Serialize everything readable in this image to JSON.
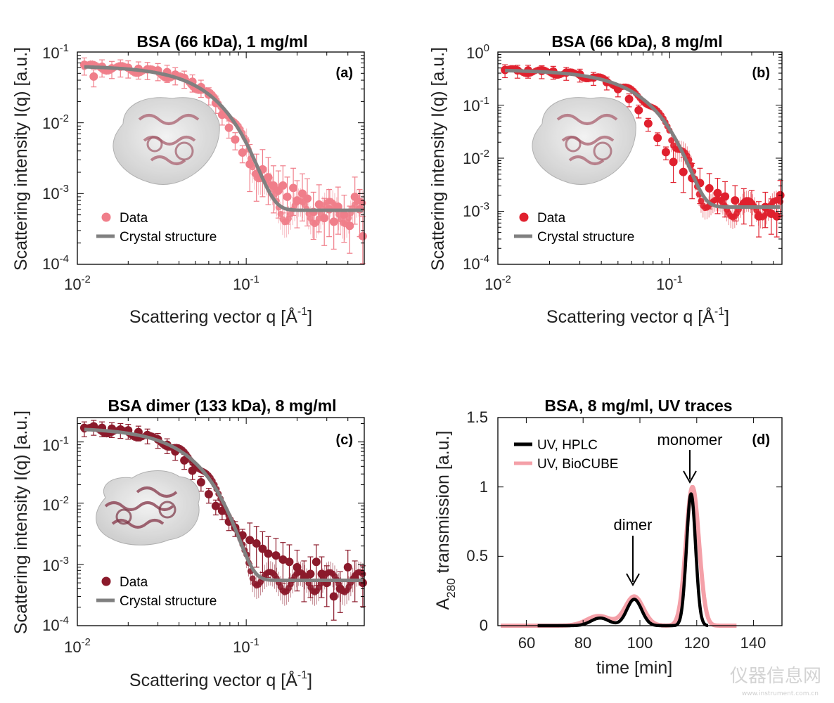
{
  "watermark": {
    "text": "仪器信息网",
    "url_text": "www.instrument.com.cn"
  },
  "chart_data": [
    {
      "id": "a",
      "type": "scatter",
      "scale": "loglog",
      "title": "BSA (66 kDa), 1 mg/ml",
      "panel_label": "(a)",
      "xlabel": "Scattering vector q [Å",
      "xlabel_sup": "-1",
      "xlabel_end": "]",
      "ylabel": "Scattering intensity I(q) [a.u.]",
      "xlim": [
        0.01,
        0.5
      ],
      "ylim": [
        0.0001,
        0.1
      ],
      "xticks": [
        {
          "base": "10",
          "exp": "-2"
        },
        {
          "base": "10",
          "exp": "-1"
        }
      ],
      "yticks": [
        {
          "base": "10",
          "exp": "-4"
        },
        {
          "base": "10",
          "exp": "-3"
        },
        {
          "base": "10",
          "exp": "-2"
        },
        {
          "base": "10",
          "exp": "-1"
        }
      ],
      "legend": {
        "position": "bottom-left",
        "entries": [
          "Data",
          "Crystal structure"
        ]
      },
      "data_color": "#f07e8a",
      "fit_color": "#808080",
      "model": {
        "I0": 0.063,
        "rg": 28,
        "tail": 0.00058
      },
      "data_points": [
        [
          0.011,
          0.066
        ],
        [
          0.0125,
          0.045
        ],
        [
          0.014,
          0.062
        ],
        [
          0.016,
          0.059
        ],
        [
          0.018,
          0.062
        ],
        [
          0.02,
          0.06
        ],
        [
          0.023,
          0.058
        ],
        [
          0.026,
          0.057
        ],
        [
          0.03,
          0.055
        ],
        [
          0.034,
          0.052
        ],
        [
          0.038,
          0.048
        ],
        [
          0.043,
          0.043
        ],
        [
          0.048,
          0.038
        ],
        [
          0.054,
          0.032
        ],
        [
          0.06,
          0.025
        ],
        [
          0.066,
          0.019
        ],
        [
          0.072,
          0.013
        ],
        [
          0.079,
          0.0085
        ],
        [
          0.086,
          0.0058
        ],
        [
          0.095,
          0.0038
        ],
        [
          0.105,
          0.0026
        ],
        [
          0.115,
          0.0019
        ],
        [
          0.125,
          0.0022
        ],
        [
          0.135,
          0.0017
        ],
        [
          0.145,
          0.0013
        ],
        [
          0.155,
          0.0011
        ],
        [
          0.165,
          0.0013
        ],
        [
          0.175,
          0.0009
        ],
        [
          0.19,
          0.0012
        ],
        [
          0.2,
          0.0008
        ],
        [
          0.215,
          0.001
        ],
        [
          0.23,
          0.00085
        ],
        [
          0.25,
          0.00055
        ],
        [
          0.27,
          0.0007
        ],
        [
          0.29,
          0.00045
        ],
        [
          0.31,
          0.0006
        ],
        [
          0.33,
          0.0004
        ],
        [
          0.35,
          0.00065
        ],
        [
          0.38,
          0.0005
        ],
        [
          0.41,
          0.00035
        ],
        [
          0.44,
          0.0009
        ],
        [
          0.47,
          0.0006
        ],
        [
          0.49,
          0.00025
        ]
      ]
    },
    {
      "id": "b",
      "type": "scatter",
      "scale": "loglog",
      "title": "BSA (66 kDa), 8 mg/ml",
      "panel_label": "(b)",
      "xlabel": "Scattering vector q [Å",
      "xlabel_sup": "-1",
      "xlabel_end": "]",
      "ylabel": "Scattering intensity I(q) [a.u.]",
      "xlim": [
        0.01,
        0.45
      ],
      "ylim": [
        0.0001,
        1
      ],
      "xticks": [
        {
          "base": "10",
          "exp": "-2"
        },
        {
          "base": "10",
          "exp": "-1"
        }
      ],
      "yticks": [
        {
          "base": "10",
          "exp": "-4"
        },
        {
          "base": "10",
          "exp": "-3"
        },
        {
          "base": "10",
          "exp": "-2"
        },
        {
          "base": "10",
          "exp": "-1"
        },
        {
          "base": "10",
          "exp": "0"
        }
      ],
      "legend": {
        "position": "bottom-left",
        "entries": [
          "Data",
          "Crystal structure"
        ]
      },
      "data_color": "#e0202e",
      "fit_color": "#808080",
      "model": {
        "I0": 0.46,
        "rg": 28,
        "tail": 0.0012
      },
      "data_points": [
        [
          0.011,
          0.46
        ],
        [
          0.013,
          0.45
        ],
        [
          0.015,
          0.45
        ],
        [
          0.018,
          0.44
        ],
        [
          0.021,
          0.43
        ],
        [
          0.025,
          0.41
        ],
        [
          0.03,
          0.38
        ],
        [
          0.036,
          0.33
        ],
        [
          0.043,
          0.27
        ],
        [
          0.05,
          0.2
        ],
        [
          0.058,
          0.13
        ],
        [
          0.066,
          0.08
        ],
        [
          0.075,
          0.045
        ],
        [
          0.085,
          0.024
        ],
        [
          0.095,
          0.013
        ],
        [
          0.105,
          0.0085
        ],
        [
          0.12,
          0.0055
        ],
        [
          0.135,
          0.0042
        ],
        [
          0.15,
          0.0034
        ],
        [
          0.17,
          0.0027
        ],
        [
          0.19,
          0.0022
        ],
        [
          0.21,
          0.0019
        ],
        [
          0.24,
          0.0016
        ],
        [
          0.27,
          0.0014
        ],
        [
          0.3,
          0.0013
        ],
        [
          0.33,
          0.0008
        ],
        [
          0.36,
          0.0012
        ],
        [
          0.39,
          0.0009
        ],
        [
          0.42,
          0.0008
        ],
        [
          0.44,
          0.002
        ]
      ]
    },
    {
      "id": "c",
      "type": "scatter",
      "scale": "loglog",
      "title": "BSA dimer (133 kDa), 8 mg/ml",
      "panel_label": "(c)",
      "xlabel": "Scattering vector q [Å",
      "xlabel_sup": "-1",
      "xlabel_end": "]",
      "ylabel": "Scattering intensity I(q) [a.u.]",
      "xlim": [
        0.01,
        0.5
      ],
      "ylim": [
        0.0001,
        0.25
      ],
      "xticks": [
        {
          "base": "10",
          "exp": "-2"
        },
        {
          "base": "10",
          "exp": "-1"
        }
      ],
      "yticks": [
        {
          "base": "10",
          "exp": "-4"
        },
        {
          "base": "10",
          "exp": "-3"
        },
        {
          "base": "10",
          "exp": "-2"
        },
        {
          "base": "10",
          "exp": "-1"
        }
      ],
      "legend": {
        "position": "bottom-left",
        "entries": [
          "Data",
          "Crystal structure"
        ]
      },
      "data_color": "#8b1a2b",
      "fit_color": "#808080",
      "model": {
        "I0": 0.17,
        "rg": 40,
        "tail": 0.00055
      },
      "data_points": [
        [
          0.011,
          0.17
        ],
        [
          0.0125,
          0.18
        ],
        [
          0.014,
          0.17
        ],
        [
          0.016,
          0.165
        ],
        [
          0.018,
          0.16
        ],
        [
          0.02,
          0.155
        ],
        [
          0.023,
          0.145
        ],
        [
          0.026,
          0.13
        ],
        [
          0.03,
          0.11
        ],
        [
          0.034,
          0.09
        ],
        [
          0.038,
          0.07
        ],
        [
          0.043,
          0.05
        ],
        [
          0.048,
          0.034
        ],
        [
          0.054,
          0.022
        ],
        [
          0.06,
          0.014
        ],
        [
          0.066,
          0.009
        ],
        [
          0.072,
          0.0075
        ],
        [
          0.079,
          0.005
        ],
        [
          0.086,
          0.004
        ],
        [
          0.095,
          0.003
        ],
        [
          0.105,
          0.0025
        ],
        [
          0.115,
          0.0022
        ],
        [
          0.125,
          0.0018
        ],
        [
          0.135,
          0.0015
        ],
        [
          0.15,
          0.0014
        ],
        [
          0.165,
          0.0012
        ],
        [
          0.18,
          0.0011
        ],
        [
          0.2,
          0.0009
        ],
        [
          0.22,
          0.0006
        ],
        [
          0.24,
          0.0007
        ],
        [
          0.26,
          0.0011
        ],
        [
          0.28,
          0.0007
        ],
        [
          0.3,
          0.0005
        ],
        [
          0.33,
          0.0003
        ],
        [
          0.36,
          0.0004
        ],
        [
          0.4,
          0.0009
        ],
        [
          0.44,
          0.0006
        ],
        [
          0.49,
          0.0005
        ]
      ]
    },
    {
      "id": "d",
      "type": "line",
      "scale": "linear",
      "title": "BSA, 8 mg/ml, UV traces",
      "panel_label": "(d)",
      "xlabel": "time [min]",
      "ylabel": "A",
      "ylabel_sub": "280",
      "ylabel_end": " transmission [a.u.]",
      "xlim": [
        50,
        150
      ],
      "ylim": [
        0,
        1.5
      ],
      "xticks": [
        "60",
        "80",
        "100",
        "120",
        "140"
      ],
      "xtick_values": [
        60,
        80,
        100,
        120,
        140
      ],
      "yticks": [
        "0",
        "0.5",
        "1",
        "1.5"
      ],
      "ytick_values": [
        0,
        0.5,
        1,
        1.5
      ],
      "legend": {
        "position": "top-left",
        "entries": [
          "UV, HPLC",
          "UV, BioCUBE"
        ]
      },
      "annotations": [
        {
          "text": "dimer",
          "x": 98,
          "y": 0.21
        },
        {
          "text": "monomer",
          "x": 118,
          "y": 1.0
        }
      ],
      "series": [
        {
          "name": "UV, HPLC",
          "color": "#000000",
          "x_range": [
            64,
            124
          ],
          "peaks": [
            {
              "center": 86,
              "height": 0.055,
              "width": 3.2
            },
            {
              "center": 98,
              "height": 0.19,
              "width": 2.6
            },
            {
              "center": 118,
              "height": 0.95,
              "width": 1.6
            }
          ]
        },
        {
          "name": "UV, BioCUBE",
          "color": "#f4a0a8",
          "x_range": [
            51,
            134
          ],
          "peaks": [
            {
              "center": 85.5,
              "height": 0.07,
              "width": 4.2
            },
            {
              "center": 98,
              "height": 0.21,
              "width": 3.2
            },
            {
              "center": 118.5,
              "height": 1.0,
              "width": 2.3
            }
          ]
        }
      ]
    }
  ]
}
